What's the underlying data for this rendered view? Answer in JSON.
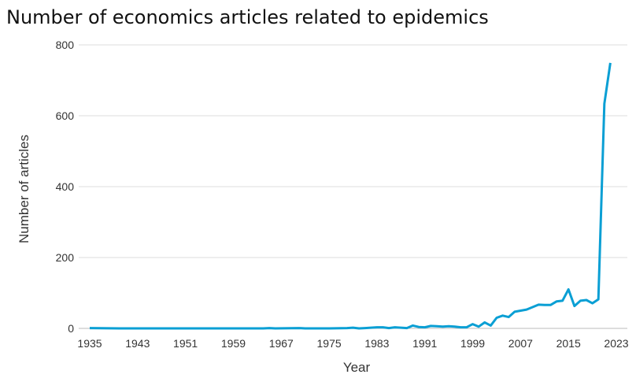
{
  "chart_data": {
    "type": "line",
    "title": "Number of economics articles related to epidemics",
    "xlabel": "Year",
    "ylabel": "Number of articles",
    "ylim": [
      0,
      800
    ],
    "yticks": [
      0,
      200,
      400,
      600,
      800
    ],
    "xticks": [
      1935,
      1943,
      1951,
      1959,
      1967,
      1975,
      1983,
      1991,
      1999,
      2007,
      2015,
      2023
    ],
    "grid": "horizontal",
    "color": "#0a9fd4",
    "x": [
      1935,
      1940,
      1945,
      1950,
      1955,
      1960,
      1964,
      1965,
      1966,
      1970,
      1971,
      1975,
      1978,
      1979,
      1980,
      1981,
      1982,
      1983,
      1984,
      1985,
      1986,
      1987,
      1988,
      1989,
      1990,
      1991,
      1992,
      1993,
      1994,
      1995,
      1996,
      1997,
      1998,
      1999,
      2000,
      2001,
      2002,
      2003,
      2004,
      2005,
      2006,
      2007,
      2008,
      2009,
      2010,
      2011,
      2012,
      2013,
      2014,
      2015,
      2016,
      2017,
      2018,
      2019,
      2020,
      2021,
      2022
    ],
    "values": [
      1,
      0,
      0,
      0,
      0,
      0,
      0,
      1,
      0,
      1,
      0,
      0,
      1,
      2,
      0,
      1,
      2,
      3,
      3,
      1,
      3,
      2,
      1,
      8,
      4,
      3,
      7,
      6,
      5,
      6,
      5,
      3,
      3,
      12,
      5,
      17,
      8,
      30,
      36,
      32,
      47,
      50,
      53,
      60,
      67,
      66,
      66,
      76,
      78,
      110,
      63,
      78,
      80,
      71,
      82,
      634,
      749
    ]
  }
}
